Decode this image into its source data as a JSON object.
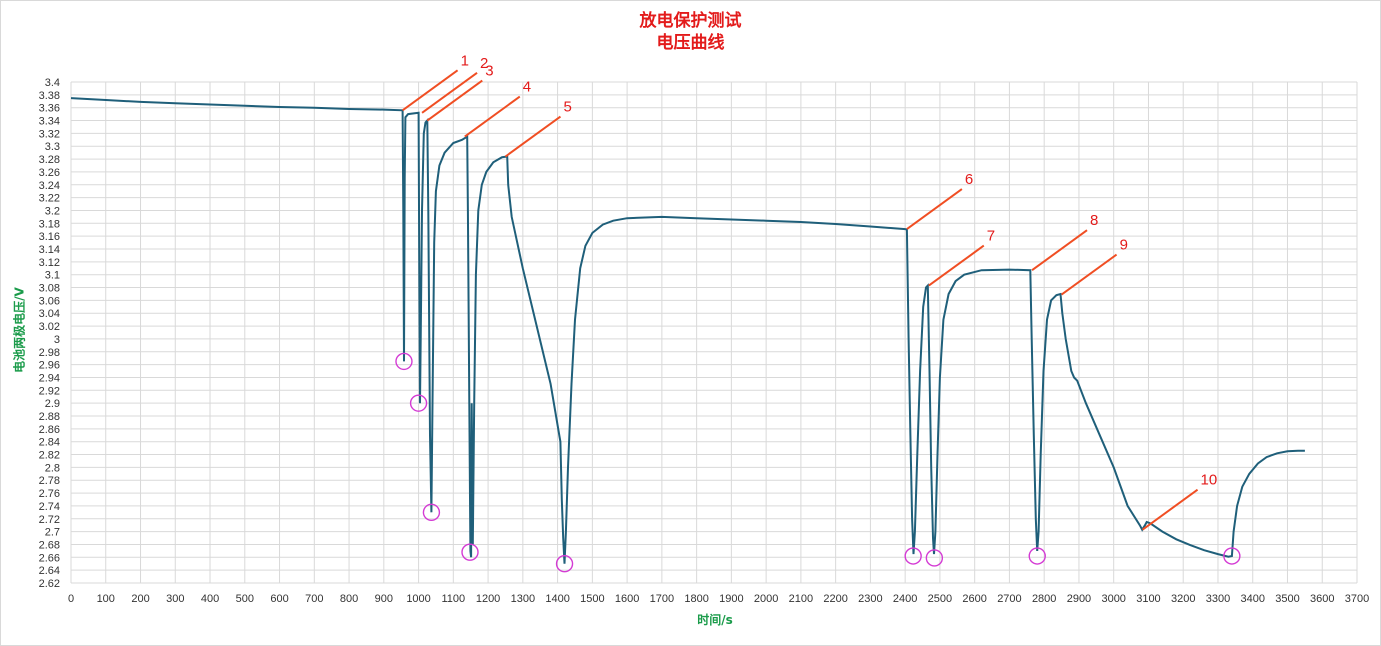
{
  "chart_data": {
    "type": "line",
    "title": [
      "放电保护测试",
      "电压曲线"
    ],
    "xlabel": "时间/s",
    "ylabel": "电池两极电压/V",
    "xlim": [
      0,
      3700
    ],
    "ylim": [
      2.62,
      3.4
    ],
    "x_ticks": [
      0,
      100,
      200,
      300,
      400,
      500,
      600,
      700,
      800,
      900,
      1000,
      1100,
      1200,
      1300,
      1400,
      1500,
      1600,
      1700,
      1800,
      1900,
      2000,
      2100,
      2200,
      2300,
      2400,
      2500,
      2600,
      2700,
      2800,
      2900,
      3000,
      3100,
      3200,
      3300,
      3400,
      3500,
      3600,
      3700
    ],
    "y_ticks": [
      "2.62",
      "2.64",
      "2.66",
      "2.68",
      "2.7",
      "2.72",
      "2.74",
      "2.76",
      "2.78",
      "2.8",
      "2.82",
      "2.84",
      "2.86",
      "2.88",
      "2.9",
      "2.92",
      "2.94",
      "2.96",
      "2.98",
      "3",
      "3.02",
      "3.04",
      "3.06",
      "3.08",
      "3.1",
      "3.12",
      "3.14",
      "3.16",
      "3.18",
      "3.2",
      "3.22",
      "3.24",
      "3.26",
      "3.28",
      "3.3",
      "3.32",
      "3.34",
      "3.36",
      "3.38",
      "3.4"
    ],
    "grid": true,
    "line_color": "#1f5f7a",
    "grid_color": "#d9d9d9",
    "annotation_color": "#f04e23",
    "annotation_text_color": "#e31b1b",
    "marker_color": "#d43bd4",
    "series": [
      {
        "points": [
          [
            0,
            3.375
          ],
          [
            100,
            3.372
          ],
          [
            200,
            3.369
          ],
          [
            300,
            3.367
          ],
          [
            400,
            3.365
          ],
          [
            500,
            3.363
          ],
          [
            600,
            3.361
          ],
          [
            700,
            3.36
          ],
          [
            800,
            3.358
          ],
          [
            900,
            3.357
          ],
          [
            954,
            3.356
          ],
          [
            956,
            3.2
          ],
          [
            958,
            2.965
          ],
          [
            960,
            3.25
          ],
          [
            962,
            3.345
          ],
          [
            970,
            3.35
          ],
          [
            1000,
            3.352
          ],
          [
            1002,
            3.1
          ],
          [
            1004,
            2.9
          ],
          [
            1006,
            3.0
          ],
          [
            1010,
            3.2
          ],
          [
            1015,
            3.32
          ],
          [
            1020,
            3.337
          ],
          [
            1025,
            3.34
          ],
          [
            1028,
            3.2
          ],
          [
            1033,
            2.85
          ],
          [
            1037,
            2.73
          ],
          [
            1040,
            2.9
          ],
          [
            1045,
            3.15
          ],
          [
            1050,
            3.23
          ],
          [
            1060,
            3.27
          ],
          [
            1075,
            3.29
          ],
          [
            1100,
            3.305
          ],
          [
            1125,
            3.31
          ],
          [
            1140,
            3.315
          ],
          [
            1142,
            3.2
          ],
          [
            1146,
            2.9
          ],
          [
            1149,
            2.67
          ],
          [
            1151,
            2.66
          ],
          [
            1153,
            2.9
          ],
          [
            1156,
            2.68
          ],
          [
            1160,
            2.9
          ],
          [
            1165,
            3.1
          ],
          [
            1172,
            3.2
          ],
          [
            1182,
            3.24
          ],
          [
            1195,
            3.26
          ],
          [
            1215,
            3.275
          ],
          [
            1240,
            3.283
          ],
          [
            1255,
            3.284
          ],
          [
            1258,
            3.24
          ],
          [
            1268,
            3.19
          ],
          [
            1300,
            3.11
          ],
          [
            1340,
            3.02
          ],
          [
            1380,
            2.93
          ],
          [
            1405,
            2.85
          ],
          [
            1408,
            2.84
          ],
          [
            1412,
            2.75
          ],
          [
            1416,
            2.69
          ],
          [
            1420,
            2.65
          ],
          [
            1424,
            2.7
          ],
          [
            1430,
            2.8
          ],
          [
            1440,
            2.93
          ],
          [
            1450,
            3.03
          ],
          [
            1465,
            3.11
          ],
          [
            1480,
            3.145
          ],
          [
            1500,
            3.165
          ],
          [
            1530,
            3.178
          ],
          [
            1560,
            3.184
          ],
          [
            1600,
            3.188
          ],
          [
            1700,
            3.19
          ],
          [
            1800,
            3.188
          ],
          [
            1900,
            3.186
          ],
          [
            2000,
            3.184
          ],
          [
            2100,
            3.182
          ],
          [
            2200,
            3.179
          ],
          [
            2300,
            3.175
          ],
          [
            2400,
            3.171
          ],
          [
            2405,
            3.17
          ],
          [
            2410,
            3.0
          ],
          [
            2415,
            2.85
          ],
          [
            2420,
            2.72
          ],
          [
            2424,
            2.665
          ],
          [
            2428,
            2.7
          ],
          [
            2435,
            2.82
          ],
          [
            2443,
            2.95
          ],
          [
            2452,
            3.05
          ],
          [
            2460,
            3.08
          ],
          [
            2465,
            3.083
          ],
          [
            2470,
            2.95
          ],
          [
            2475,
            2.8
          ],
          [
            2480,
            2.69
          ],
          [
            2483,
            2.665
          ],
          [
            2487,
            2.7
          ],
          [
            2493,
            2.82
          ],
          [
            2500,
            2.94
          ],
          [
            2510,
            3.03
          ],
          [
            2525,
            3.07
          ],
          [
            2545,
            3.09
          ],
          [
            2570,
            3.1
          ],
          [
            2620,
            3.107
          ],
          [
            2700,
            3.108
          ],
          [
            2760,
            3.107
          ],
          [
            2764,
            3.0
          ],
          [
            2770,
            2.85
          ],
          [
            2776,
            2.72
          ],
          [
            2780,
            2.67
          ],
          [
            2784,
            2.7
          ],
          [
            2790,
            2.82
          ],
          [
            2798,
            2.95
          ],
          [
            2808,
            3.03
          ],
          [
            2820,
            3.06
          ],
          [
            2835,
            3.068
          ],
          [
            2847,
            3.07
          ],
          [
            2852,
            3.04
          ],
          [
            2862,
            3.0
          ],
          [
            2878,
            2.95
          ],
          [
            2886,
            2.94
          ],
          [
            2895,
            2.935
          ],
          [
            2920,
            2.9
          ],
          [
            2960,
            2.85
          ],
          [
            3000,
            2.8
          ],
          [
            3040,
            2.74
          ],
          [
            3075,
            2.71
          ],
          [
            3082,
            2.703
          ],
          [
            3090,
            2.71
          ],
          [
            3095,
            2.715
          ],
          [
            3105,
            2.713
          ],
          [
            3140,
            2.7
          ],
          [
            3180,
            2.688
          ],
          [
            3220,
            2.679
          ],
          [
            3260,
            2.671
          ],
          [
            3300,
            2.665
          ],
          [
            3330,
            2.661
          ],
          [
            3340,
            2.662
          ],
          [
            3345,
            2.7
          ],
          [
            3355,
            2.74
          ],
          [
            3370,
            2.77
          ],
          [
            3390,
            2.79
          ],
          [
            3415,
            2.806
          ],
          [
            3440,
            2.816
          ],
          [
            3470,
            2.822
          ],
          [
            3500,
            2.825
          ],
          [
            3530,
            2.826
          ],
          [
            3550,
            2.826
          ]
        ]
      }
    ],
    "annotations": [
      {
        "label": "1",
        "x": 954,
        "y": 3.356
      },
      {
        "label": "2",
        "x": 1010,
        "y": 3.352
      },
      {
        "label": "3",
        "x": 1025,
        "y": 3.34
      },
      {
        "label": "4",
        "x": 1133,
        "y": 3.315
      },
      {
        "label": "5",
        "x": 1250,
        "y": 3.284
      },
      {
        "label": "6",
        "x": 2405,
        "y": 3.171
      },
      {
        "label": "7",
        "x": 2468,
        "y": 3.083
      },
      {
        "label": "8",
        "x": 2765,
        "y": 3.107
      },
      {
        "label": "9",
        "x": 2850,
        "y": 3.069
      },
      {
        "label": "10",
        "x": 3083,
        "y": 2.703
      }
    ],
    "minimum_markers": [
      {
        "x": 958,
        "y": 2.965
      },
      {
        "x": 1000,
        "y": 2.9
      },
      {
        "x": 1037,
        "y": 2.73
      },
      {
        "x": 1148,
        "y": 2.668
      },
      {
        "x": 1420,
        "y": 2.65
      },
      {
        "x": 2423,
        "y": 2.662
      },
      {
        "x": 2484,
        "y": 2.659
      },
      {
        "x": 2780,
        "y": 2.662
      },
      {
        "x": 3340,
        "y": 2.662
      }
    ]
  }
}
